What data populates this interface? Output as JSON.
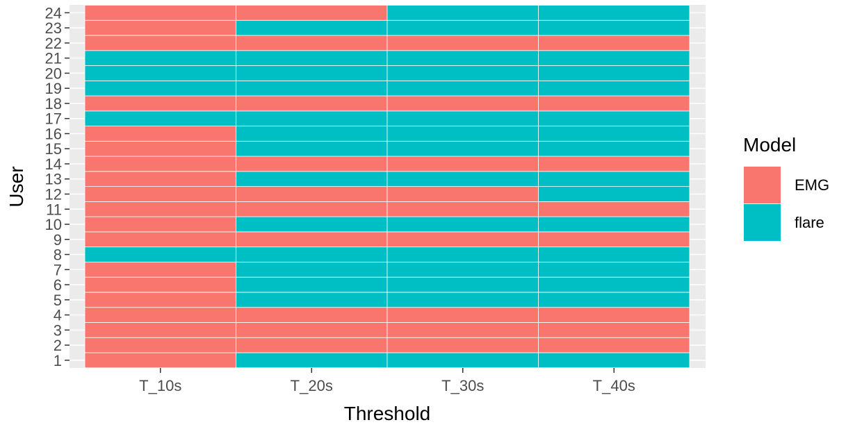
{
  "chart_data": {
    "type": "heatmap",
    "xlabel": "Threshold",
    "ylabel": "User",
    "x_categories": [
      "T_10s",
      "T_20s",
      "T_30s",
      "T_40s"
    ],
    "y_categories": [
      "1",
      "2",
      "3",
      "4",
      "5",
      "6",
      "7",
      "8",
      "9",
      "10",
      "11",
      "12",
      "13",
      "14",
      "15",
      "16",
      "17",
      "18",
      "19",
      "20",
      "21",
      "22",
      "23",
      "24"
    ],
    "legend": {
      "title": "Model",
      "position": "right",
      "items": [
        {
          "label": "EMG",
          "color": "#F8766D"
        },
        {
          "label": "flare",
          "color": "#00BFC4"
        }
      ]
    },
    "grid": true,
    "cells": [
      {
        "user": "1",
        "values": [
          "EMG",
          "flare",
          "flare",
          "flare"
        ]
      },
      {
        "user": "2",
        "values": [
          "EMG",
          "EMG",
          "EMG",
          "EMG"
        ]
      },
      {
        "user": "3",
        "values": [
          "EMG",
          "EMG",
          "EMG",
          "EMG"
        ]
      },
      {
        "user": "4",
        "values": [
          "EMG",
          "EMG",
          "EMG",
          "EMG"
        ]
      },
      {
        "user": "5",
        "values": [
          "EMG",
          "flare",
          "flare",
          "flare"
        ]
      },
      {
        "user": "6",
        "values": [
          "EMG",
          "flare",
          "flare",
          "flare"
        ]
      },
      {
        "user": "7",
        "values": [
          "EMG",
          "flare",
          "flare",
          "flare"
        ]
      },
      {
        "user": "8",
        "values": [
          "flare",
          "flare",
          "flare",
          "flare"
        ]
      },
      {
        "user": "9",
        "values": [
          "EMG",
          "EMG",
          "EMG",
          "EMG"
        ]
      },
      {
        "user": "10",
        "values": [
          "EMG",
          "flare",
          "flare",
          "flare"
        ]
      },
      {
        "user": "11",
        "values": [
          "EMG",
          "EMG",
          "EMG",
          "EMG"
        ]
      },
      {
        "user": "12",
        "values": [
          "EMG",
          "EMG",
          "EMG",
          "flare"
        ]
      },
      {
        "user": "13",
        "values": [
          "EMG",
          "flare",
          "flare",
          "flare"
        ]
      },
      {
        "user": "14",
        "values": [
          "EMG",
          "EMG",
          "EMG",
          "EMG"
        ]
      },
      {
        "user": "15",
        "values": [
          "EMG",
          "flare",
          "flare",
          "flare"
        ]
      },
      {
        "user": "16",
        "values": [
          "EMG",
          "flare",
          "flare",
          "flare"
        ]
      },
      {
        "user": "17",
        "values": [
          "flare",
          "flare",
          "flare",
          "flare"
        ]
      },
      {
        "user": "18",
        "values": [
          "EMG",
          "EMG",
          "EMG",
          "EMG"
        ]
      },
      {
        "user": "19",
        "values": [
          "flare",
          "flare",
          "flare",
          "flare"
        ]
      },
      {
        "user": "20",
        "values": [
          "flare",
          "flare",
          "flare",
          "flare"
        ]
      },
      {
        "user": "21",
        "values": [
          "flare",
          "flare",
          "flare",
          "flare"
        ]
      },
      {
        "user": "22",
        "values": [
          "EMG",
          "EMG",
          "EMG",
          "EMG"
        ]
      },
      {
        "user": "23",
        "values": [
          "EMG",
          "flare",
          "flare",
          "flare"
        ]
      },
      {
        "user": "24",
        "values": [
          "EMG",
          "EMG",
          "flare",
          "flare"
        ]
      }
    ]
  },
  "style": {
    "panel_background": "#EBEBEB",
    "grid_color": "#FFFFFF",
    "tick_color": "#333333"
  }
}
